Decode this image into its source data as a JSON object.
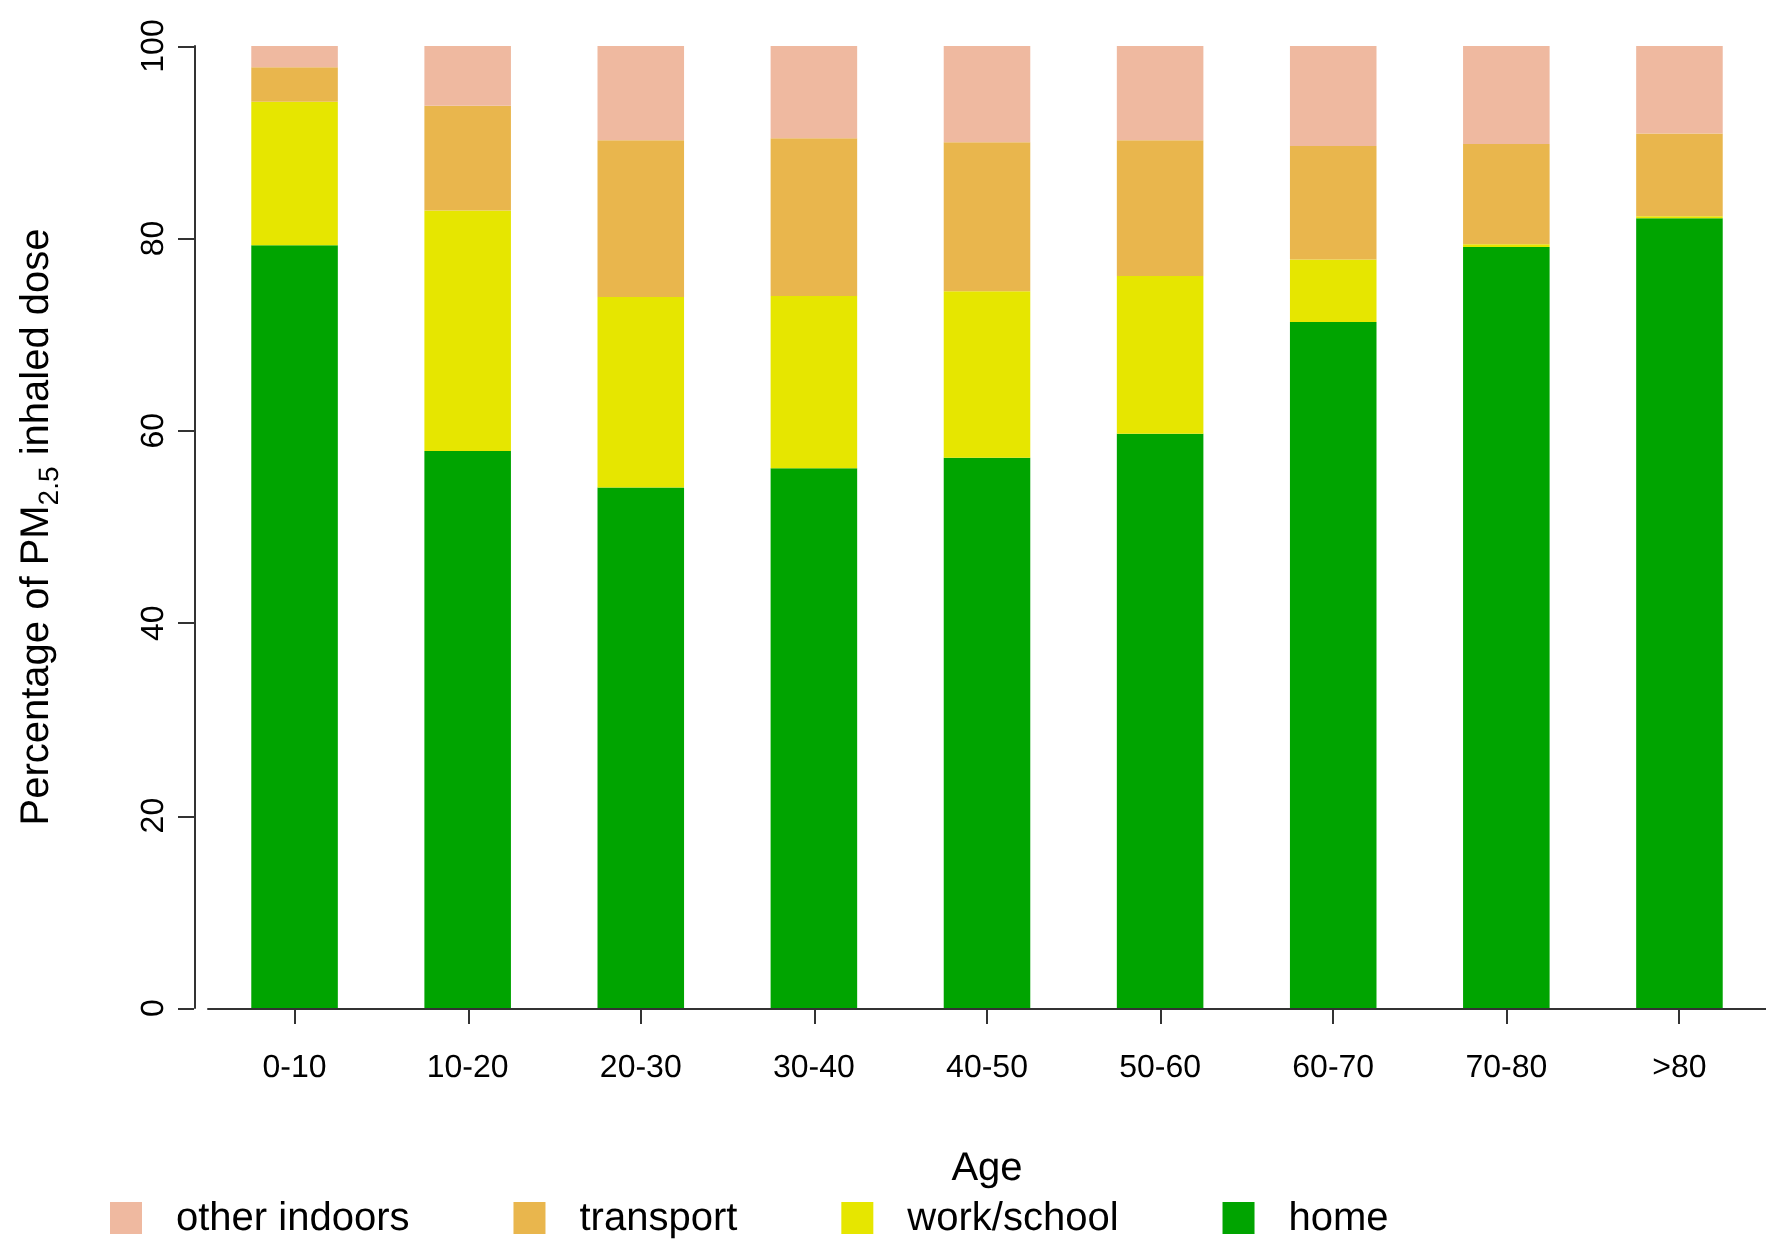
{
  "chart_data": {
    "type": "bar",
    "stacked": true,
    "xlabel": "Age",
    "ylabel": "Percentage of PM$_{2.5}$ inhaled dose",
    "categories": [
      "0-10",
      "10-20",
      "20-30",
      "30-40",
      "40-50",
      "50-60",
      "60-70",
      "70-80",
      ">80"
    ],
    "series": [
      {
        "name": "home",
        "color": "#00a400",
        "values": [
          79.3,
          57.9,
          54.1,
          56.1,
          57.2,
          59.7,
          71.3,
          79.1,
          82.1
        ]
      },
      {
        "name": "work/school",
        "color": "#e6e600",
        "values": [
          14.9,
          25.0,
          19.8,
          17.9,
          17.3,
          16.4,
          6.5,
          0.3,
          0.2
        ]
      },
      {
        "name": "transport",
        "color": "#e9b64d",
        "values": [
          3.6,
          10.9,
          16.3,
          16.4,
          15.5,
          14.1,
          11.8,
          10.4,
          8.6
        ]
      },
      {
        "name": "other indoors",
        "color": "#efb9a0",
        "values": [
          2.2,
          6.2,
          9.8,
          9.6,
          10.0,
          9.8,
          10.4,
          10.2,
          9.1
        ]
      }
    ],
    "ylim": [
      0,
      100
    ],
    "yticks": [
      0,
      20,
      40,
      60,
      80,
      100
    ],
    "grid": false,
    "legend": "bottom"
  }
}
